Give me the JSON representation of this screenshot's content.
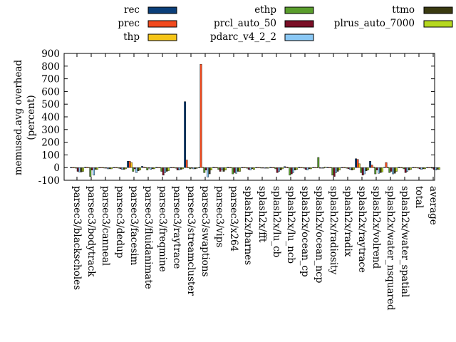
{
  "chart_data": {
    "type": "bar",
    "title": "",
    "xlabel": "",
    "ylabel": "memused.avg overhead (percent)",
    "ylabel_lines": [
      "memused.avg overhead",
      "(percent)"
    ],
    "ylim": [
      -100,
      900
    ],
    "yticks": [
      -100,
      0,
      100,
      200,
      300,
      400,
      500,
      600,
      700,
      800,
      900
    ],
    "grid": false,
    "legend_position": "top",
    "categories": [
      "parsec3/blackscholes",
      "parsec3/bodytrack",
      "parsec3/canneal",
      "parsec3/dedup",
      "parsec3/facesim",
      "parsec3/fluidanimate",
      "parsec3/freqmine",
      "parsec3/raytrace",
      "parsec3/streamcluster",
      "parsec3/swaptions",
      "parsec3/vips",
      "parsec3/x264",
      "splash2x/barnes",
      "splash2x/fft",
      "splash2x/lu_cb",
      "splash2x/lu_ncb",
      "splash2x/ocean_cp",
      "splash2x/ocean_ncp",
      "splash2x/radiosity",
      "splash2x/radix",
      "splash2x/raytrace",
      "splash2x/volrend",
      "splash2x/water_nsquared",
      "splash2x/water_spatial",
      "total",
      "average"
    ],
    "series": [
      {
        "name": "rec",
        "color": "#0b3f7a",
        "values": [
          1,
          2,
          1,
          1,
          50,
          10,
          2,
          1,
          520,
          1,
          2,
          2,
          1,
          1,
          2,
          8,
          2,
          1,
          2,
          1,
          70,
          50,
          3,
          2,
          1,
          1
        ]
      },
      {
        "name": "prec",
        "color": "#f24a1e",
        "values": [
          1,
          2,
          1,
          1,
          50,
          5,
          1,
          1,
          60,
          815,
          1,
          1,
          1,
          1,
          1,
          5,
          1,
          1,
          1,
          1,
          65,
          20,
          40,
          1,
          1,
          1
        ]
      },
      {
        "name": "thp",
        "color": "#f5c518",
        "values": [
          1,
          1,
          1,
          1,
          40,
          1,
          1,
          1,
          2,
          3,
          1,
          1,
          1,
          1,
          1,
          1,
          1,
          1,
          1,
          1,
          30,
          5,
          2,
          1,
          1,
          1
        ]
      },
      {
        "name": "ethp",
        "color": "#5a9e2c",
        "values": [
          -5,
          -70,
          -3,
          -5,
          -30,
          -20,
          -30,
          -5,
          -10,
          -40,
          -15,
          -50,
          -5,
          -3,
          -10,
          -60,
          -5,
          80,
          -60,
          -5,
          -40,
          -50,
          -40,
          -10,
          -3,
          -5
        ]
      },
      {
        "name": "prcl_auto_50",
        "color": "#7a0e26",
        "values": [
          -30,
          -20,
          -5,
          -10,
          -10,
          -5,
          -60,
          -20,
          -5,
          -20,
          -30,
          -40,
          -15,
          -3,
          -40,
          -50,
          -15,
          -5,
          -70,
          -10,
          -60,
          -20,
          -30,
          -40,
          -10,
          -15
        ]
      },
      {
        "name": "pdarc_v4_2_2",
        "color": "#8ac8f5",
        "values": [
          -35,
          -60,
          -10,
          -15,
          -40,
          -15,
          -40,
          -20,
          -10,
          -75,
          -15,
          -45,
          -20,
          -5,
          -30,
          -40,
          -20,
          -5,
          -40,
          -15,
          -50,
          -45,
          -50,
          -30,
          -15,
          -20
        ]
      },
      {
        "name": "ttmo",
        "color": "#3a3a10",
        "values": [
          -35,
          -15,
          -10,
          -15,
          -25,
          -10,
          -30,
          -15,
          -10,
          -50,
          -30,
          -30,
          -10,
          -5,
          -20,
          -20,
          -10,
          -5,
          -30,
          -20,
          -25,
          -40,
          -45,
          -20,
          -10,
          -15
        ]
      },
      {
        "name": "plrus_auto_7000",
        "color": "#b5d81f",
        "values": [
          -30,
          -15,
          -10,
          -10,
          -20,
          -10,
          -25,
          -10,
          -5,
          -20,
          -20,
          -30,
          -15,
          -5,
          -10,
          -15,
          -10,
          5,
          -20,
          -15,
          -20,
          -35,
          -30,
          -15,
          -10,
          -15
        ]
      }
    ]
  }
}
